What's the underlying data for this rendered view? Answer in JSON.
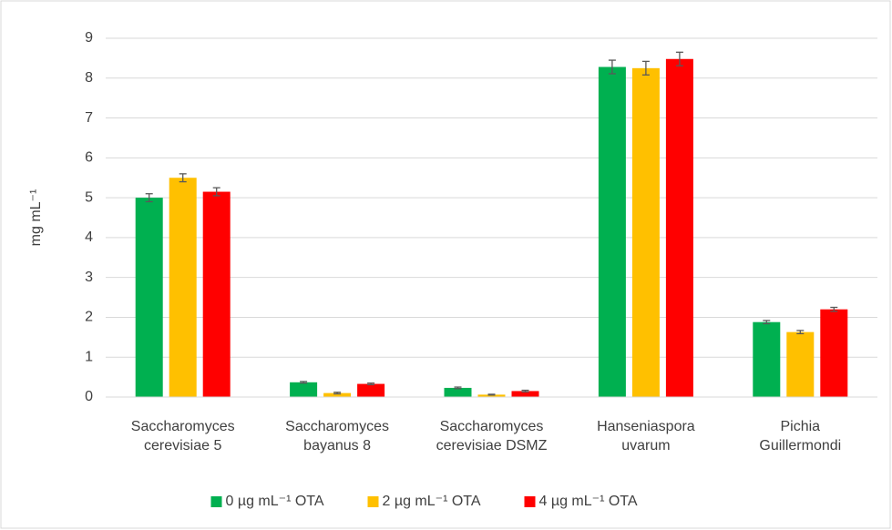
{
  "chart_data": {
    "type": "bar",
    "y_label": "mg mL⁻¹",
    "categories": [
      "Saccharomyces\ncerevisiae 5",
      "Saccharomyces\nbayanus 8",
      "Saccharomyces\ncerevisiae DSMZ",
      "Hanseniaspora\nuvarum",
      "Pichia\nGuillermondi"
    ],
    "series": [
      {
        "name": "0 µg mL⁻¹ OTA",
        "color": "#00b050",
        "values": [
          5.0,
          0.37,
          0.23,
          8.28,
          1.88
        ],
        "errors": [
          0.1,
          0.02,
          0.02,
          0.17,
          0.04
        ]
      },
      {
        "name": "2 µg mL⁻¹ OTA",
        "color": "#ffc000",
        "values": [
          5.5,
          0.1,
          0.06,
          8.25,
          1.63
        ],
        "errors": [
          0.1,
          0.02,
          0.01,
          0.17,
          0.04
        ]
      },
      {
        "name": "4 µg mL⁻¹ OTA",
        "color": "#ff0000",
        "values": [
          5.15,
          0.33,
          0.15,
          8.48,
          2.2
        ],
        "errors": [
          0.1,
          0.02,
          0.02,
          0.17,
          0.05
        ]
      }
    ],
    "ylim": [
      0,
      9
    ],
    "yticks": [
      0,
      1,
      2,
      3,
      4,
      5,
      6,
      7,
      8,
      9
    ],
    "grid": true,
    "legend": "bottom"
  }
}
